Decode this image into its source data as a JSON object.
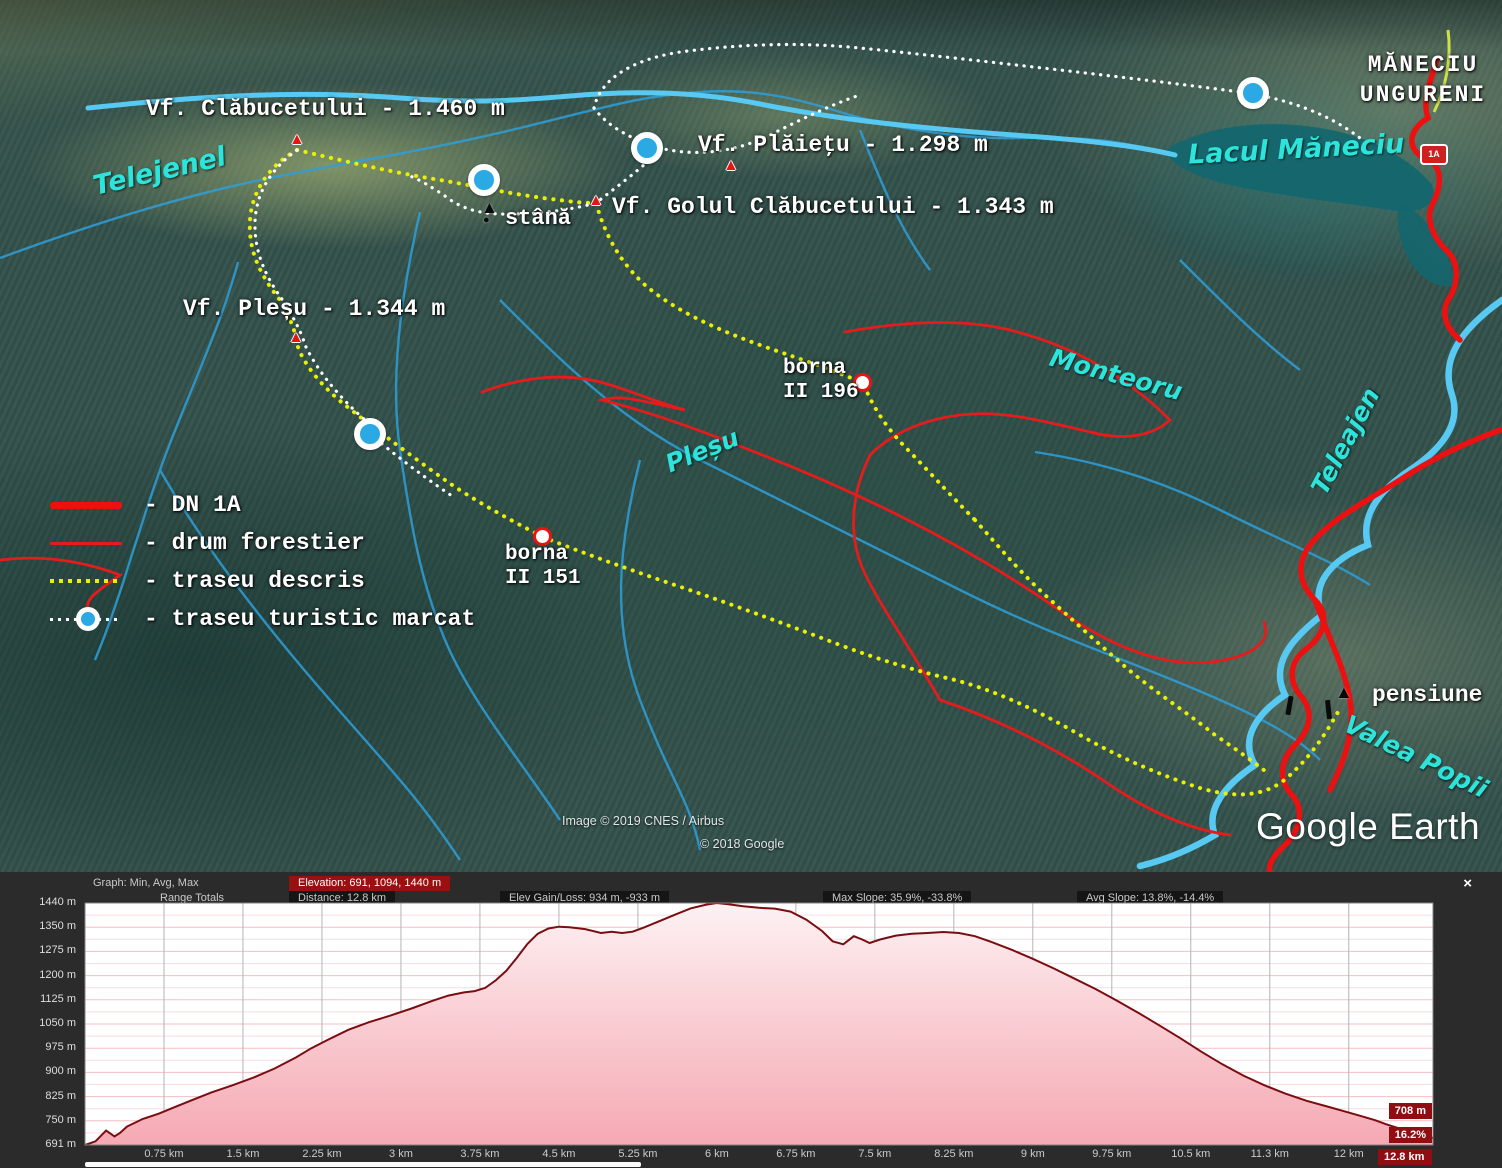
{
  "map": {
    "peaks": [
      {
        "label": "Vf. Clăbucetului - 1.460 m"
      },
      {
        "label": "Vf. Plăieţu - 1.298 m"
      },
      {
        "label": "Vf. Golul Clăbucetului - 1.343 m"
      },
      {
        "label": "Vf. Pleșu - 1.344 m"
      }
    ],
    "water_labels": [
      {
        "label": "Telejenel"
      },
      {
        "label": "Lacul Măneciu"
      },
      {
        "label": "Pleșu"
      },
      {
        "label": "Monteoru"
      },
      {
        "label": "Teleajen"
      },
      {
        "label": "Valea Popii"
      }
    ],
    "town": {
      "line1": "MĂNECIU",
      "line2": "UNGURENI"
    },
    "road_shield": "1A",
    "pois": [
      {
        "label": "stână"
      },
      {
        "label": "pensiune"
      }
    ],
    "bornas": [
      {
        "line1": "borna",
        "line2": "II 196"
      },
      {
        "line1": "borna",
        "line2": "II 151"
      }
    ],
    "legend": [
      {
        "label": "- DN 1A"
      },
      {
        "label": "- drum forestier"
      },
      {
        "label": "- traseu descris"
      },
      {
        "label": "- traseu turistic marcat"
      }
    ],
    "credits": {
      "logo": "Google Earth",
      "line1": "Image © 2019 CNES / Airbus",
      "line2": "© 2018 Google"
    }
  },
  "profile": {
    "stats": {
      "graph_label": "Graph: Min, Avg, Max",
      "elevation": "Elevation: 691, 1094, 1440 m",
      "range_totals": "Range Totals",
      "distance": "Distance: 12.8 km",
      "gain_loss": "Elev Gain/Loss: 934 m, -933 m",
      "max_slope": "Max Slope: 35.9%, -33.8%",
      "avg_slope": "Avg Slope: 13.8%, -14.4%"
    },
    "close_label": "×",
    "badges": {
      "elevation": "708 m",
      "slope": "16.2%",
      "distance": "12.8 km"
    }
  },
  "chart_data": {
    "type": "area",
    "title": "",
    "xlabel": "",
    "ylabel": "",
    "xlim": [
      0,
      12.8
    ],
    "ylim": [
      691,
      1440
    ],
    "grid": true,
    "x_ticks": [
      {
        "v": 0.75,
        "label": "0.75 km"
      },
      {
        "v": 1.5,
        "label": "1.5 km"
      },
      {
        "v": 2.25,
        "label": "2.25 km"
      },
      {
        "v": 3,
        "label": "3 km"
      },
      {
        "v": 3.75,
        "label": "3.75 km"
      },
      {
        "v": 4.5,
        "label": "4.5 km"
      },
      {
        "v": 5.25,
        "label": "5.25 km"
      },
      {
        "v": 6,
        "label": "6 km"
      },
      {
        "v": 6.75,
        "label": "6.75 km"
      },
      {
        "v": 7.5,
        "label": "7.5 km"
      },
      {
        "v": 8.25,
        "label": "8.25 km"
      },
      {
        "v": 9,
        "label": "9 km"
      },
      {
        "v": 9.75,
        "label": "9.75 km"
      },
      {
        "v": 10.5,
        "label": "10.5 km"
      },
      {
        "v": 11.25,
        "label": "11.3 km"
      },
      {
        "v": 12,
        "label": "12 km"
      },
      {
        "v": 12.8,
        "label": "12.8 km"
      }
    ],
    "y_ticks": [
      {
        "v": 1440,
        "label": "1440 m"
      },
      {
        "v": 1350,
        "label": "1350 m"
      },
      {
        "v": 1275,
        "label": "1275 m"
      },
      {
        "v": 1200,
        "label": "1200 m"
      },
      {
        "v": 1125,
        "label": "1125 m"
      },
      {
        "v": 1050,
        "label": "1050 m"
      },
      {
        "v": 975,
        "label": "975 m"
      },
      {
        "v": 900,
        "label": "900 m"
      },
      {
        "v": 825,
        "label": "825 m"
      },
      {
        "v": 750,
        "label": "750 m"
      },
      {
        "v": 691,
        "label": "691 m"
      }
    ],
    "series": [
      {
        "name": "elevation_profile",
        "x": [
          0,
          0.1,
          0.2,
          0.28,
          0.33,
          0.4,
          0.55,
          0.7,
          0.85,
          1.0,
          1.2,
          1.4,
          1.6,
          1.8,
          2.0,
          2.15,
          2.3,
          2.5,
          2.7,
          2.9,
          3.1,
          3.3,
          3.45,
          3.6,
          3.7,
          3.8,
          3.9,
          4.0,
          4.1,
          4.2,
          4.3,
          4.4,
          4.5,
          4.6,
          4.75,
          4.9,
          5.0,
          5.1,
          5.2,
          5.3,
          5.45,
          5.6,
          5.75,
          5.9,
          6.0,
          6.1,
          6.25,
          6.4,
          6.55,
          6.7,
          6.85,
          7.0,
          7.1,
          7.2,
          7.3,
          7.38,
          7.45,
          7.55,
          7.7,
          7.85,
          8.0,
          8.15,
          8.3,
          8.45,
          8.6,
          8.8,
          9.0,
          9.2,
          9.4,
          9.6,
          9.8,
          10.0,
          10.2,
          10.4,
          10.6,
          10.8,
          11.0,
          11.2,
          11.4,
          11.6,
          11.8,
          11.95,
          12.1,
          12.25,
          12.35,
          12.45,
          12.55,
          12.65,
          12.75,
          12.8
        ],
        "y": [
          691,
          700,
          726,
          712,
          720,
          736,
          756,
          772,
          792,
          812,
          838,
          860,
          884,
          912,
          946,
          975,
          1000,
          1032,
          1056,
          1076,
          1098,
          1122,
          1138,
          1148,
          1152,
          1162,
          1185,
          1215,
          1255,
          1298,
          1330,
          1346,
          1352,
          1350,
          1344,
          1332,
          1336,
          1332,
          1336,
          1348,
          1372,
          1396,
          1420,
          1434,
          1440,
          1436,
          1428,
          1422,
          1419,
          1408,
          1378,
          1338,
          1306,
          1297,
          1322,
          1312,
          1301,
          1312,
          1324,
          1330,
          1332,
          1335,
          1332,
          1322,
          1305,
          1280,
          1252,
          1222,
          1190,
          1158,
          1122,
          1085,
          1046,
          1006,
          964,
          925,
          890,
          860,
          834,
          812,
          794,
          780,
          766,
          752,
          742,
          734,
          726,
          718,
          712,
          708
        ]
      }
    ]
  },
  "colors": {
    "dn1a": "#ec1010",
    "forest": "#e41c1c",
    "described": "#e9f005",
    "marked": "#ffffff",
    "river": "#2f9fd8",
    "trail_blue": "#57c9f2",
    "water_text": "#2ce4da",
    "profile_line": "#7a0d12",
    "badge_bg": "#8f0e12"
  }
}
